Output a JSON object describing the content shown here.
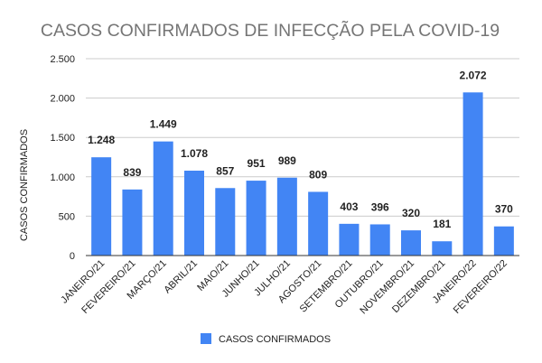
{
  "chart_data": {
    "type": "bar",
    "title": "CASOS CONFIRMADOS DE INFECÇÃO PELA COVID-19",
    "xlabel": "",
    "ylabel": "CASOS CONFIRMADOS",
    "categories": [
      "JANEIRO/21",
      "FEVEREIRO/21",
      "MARÇO/21",
      "ABRIL/21",
      "MAIO/21",
      "JUNHO/21",
      "JULHO/21",
      "AGOSTO/21",
      "SETEMBRO/21",
      "OUTUBRO/21",
      "NOVEMBRO/21",
      "DEZEMBRO/21",
      "JANEIRO/22",
      "FEVEREIRO/22"
    ],
    "series": [
      {
        "name": "CASOS CONFIRMADOS",
        "values": [
          1248,
          839,
          1449,
          1078,
          857,
          951,
          989,
          809,
          403,
          396,
          320,
          181,
          2072,
          370
        ],
        "value_labels": [
          "1.248",
          "839",
          "1.449",
          "1.078",
          "857",
          "951",
          "989",
          "809",
          "403",
          "396",
          "320",
          "181",
          "2.072",
          "370"
        ],
        "color": "#4285f4"
      }
    ],
    "ylim": [
      0,
      2500
    ],
    "yticks": [
      0,
      500,
      1000,
      1500,
      2000,
      2500
    ],
    "ytick_labels": [
      "0",
      "500",
      "1.000",
      "1.500",
      "2.000",
      "2.500"
    ],
    "grid": true,
    "legend_position": "bottom"
  }
}
